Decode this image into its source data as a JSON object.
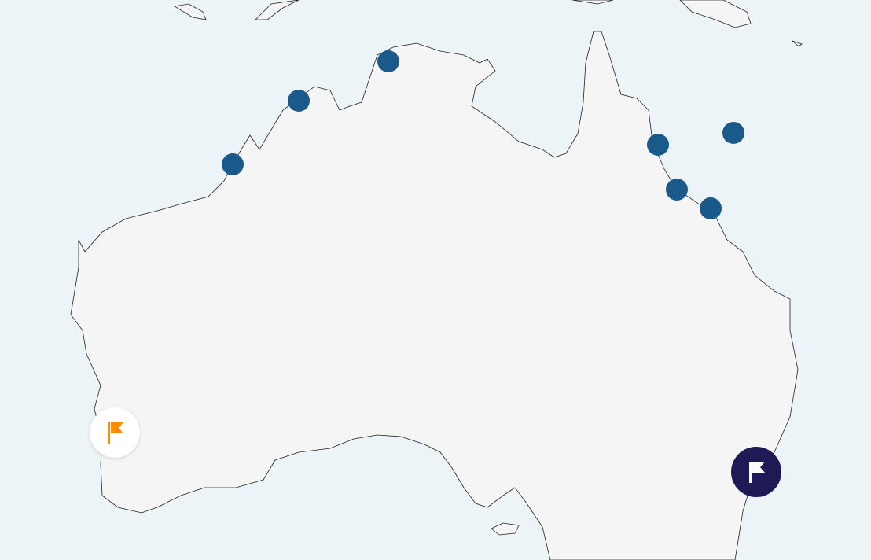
{
  "map": {
    "colors": {
      "water": "#edf4f8",
      "land": "#f5f5f5",
      "coastline": "#222222",
      "location_marker": "#1a5a8a",
      "flag_marker_light_bg": "#ffffff",
      "flag_marker_light_icon": "#ff8c00",
      "flag_marker_dark_bg": "#1f1a56",
      "flag_marker_dark_icon": "#ffffff"
    },
    "markers": [
      {
        "type": "location",
        "icon": "circle-marker"
      },
      {
        "type": "location",
        "icon": "circle-marker"
      },
      {
        "type": "location",
        "icon": "circle-marker"
      },
      {
        "type": "location",
        "icon": "circle-marker"
      },
      {
        "type": "location",
        "icon": "circle-marker"
      },
      {
        "type": "location",
        "icon": "circle-marker"
      },
      {
        "type": "location",
        "icon": "circle-marker"
      },
      {
        "type": "flag",
        "icon": "flag-icon",
        "style": "light"
      },
      {
        "type": "flag",
        "icon": "flag-icon",
        "style": "dark"
      }
    ]
  }
}
